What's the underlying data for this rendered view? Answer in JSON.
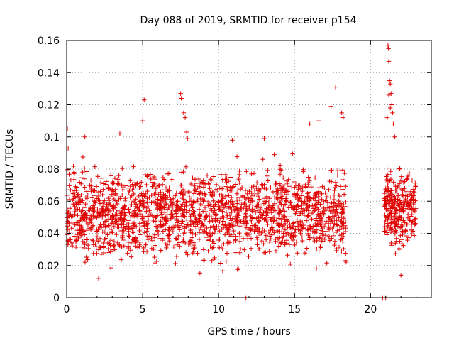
{
  "chart_data": {
    "type": "scatter",
    "title": "Day 088 of 2019, SRMTID for receiver p154",
    "xlabel": "GPS time / hours",
    "ylabel": "SRMTID / TECUs",
    "xlim": [
      0,
      24
    ],
    "ylim": [
      0,
      0.16
    ],
    "xticks": [
      0,
      5,
      10,
      15,
      20
    ],
    "xtick_labels": [
      "0",
      "5",
      "10",
      "15",
      "20"
    ],
    "yticks": [
      0,
      0.02,
      0.04,
      0.06,
      0.08,
      0.1,
      0.12,
      0.14,
      0.16
    ],
    "ytick_labels": [
      "0",
      "0.02",
      "0.04",
      "0.06",
      "0.08",
      "0.1",
      "0.12",
      "0.14",
      "0.16"
    ],
    "grid": true,
    "marker": "+",
    "color": "#e00000",
    "series": [
      {
        "name": "SRMTID",
        "segments": [
          {
            "x_start": 0.0,
            "x_end": 18.4,
            "mean": 0.052,
            "spread": 0.022,
            "count": 1900
          },
          {
            "x_start": 20.9,
            "x_end": 23.0,
            "mean": 0.055,
            "spread": 0.02,
            "count": 300
          }
        ],
        "extra_points": [
          [
            0.05,
            0.105
          ],
          [
            0.1,
            0.093
          ],
          [
            1.2,
            0.1
          ],
          [
            3.5,
            0.102
          ],
          [
            5.1,
            0.123
          ],
          [
            5.0,
            0.11
          ],
          [
            7.5,
            0.127
          ],
          [
            7.55,
            0.124
          ],
          [
            7.7,
            0.115
          ],
          [
            7.8,
            0.112
          ],
          [
            7.9,
            0.103
          ],
          [
            7.95,
            0.099
          ],
          [
            16.0,
            0.108
          ],
          [
            16.6,
            0.11
          ],
          [
            17.4,
            0.119
          ],
          [
            17.7,
            0.131
          ],
          [
            18.1,
            0.115
          ],
          [
            18.2,
            0.112
          ],
          [
            11.8,
            0.0
          ],
          [
            10.9,
            0.098
          ],
          [
            13.0,
            0.099
          ],
          [
            20.8,
            0.0
          ],
          [
            20.9,
            0.0
          ],
          [
            21.0,
            0.0
          ],
          [
            21.15,
            0.157
          ],
          [
            21.18,
            0.155
          ],
          [
            21.2,
            0.147
          ],
          [
            21.25,
            0.135
          ],
          [
            21.3,
            0.133
          ],
          [
            21.35,
            0.127
          ],
          [
            21.4,
            0.12
          ],
          [
            21.45,
            0.115
          ],
          [
            21.5,
            0.108
          ],
          [
            21.6,
            0.1
          ],
          [
            21.1,
            0.112
          ],
          [
            21.2,
            0.126
          ],
          [
            21.3,
            0.118
          ],
          [
            22.0,
            0.014
          ],
          [
            2.1,
            0.012
          ]
        ]
      }
    ]
  }
}
